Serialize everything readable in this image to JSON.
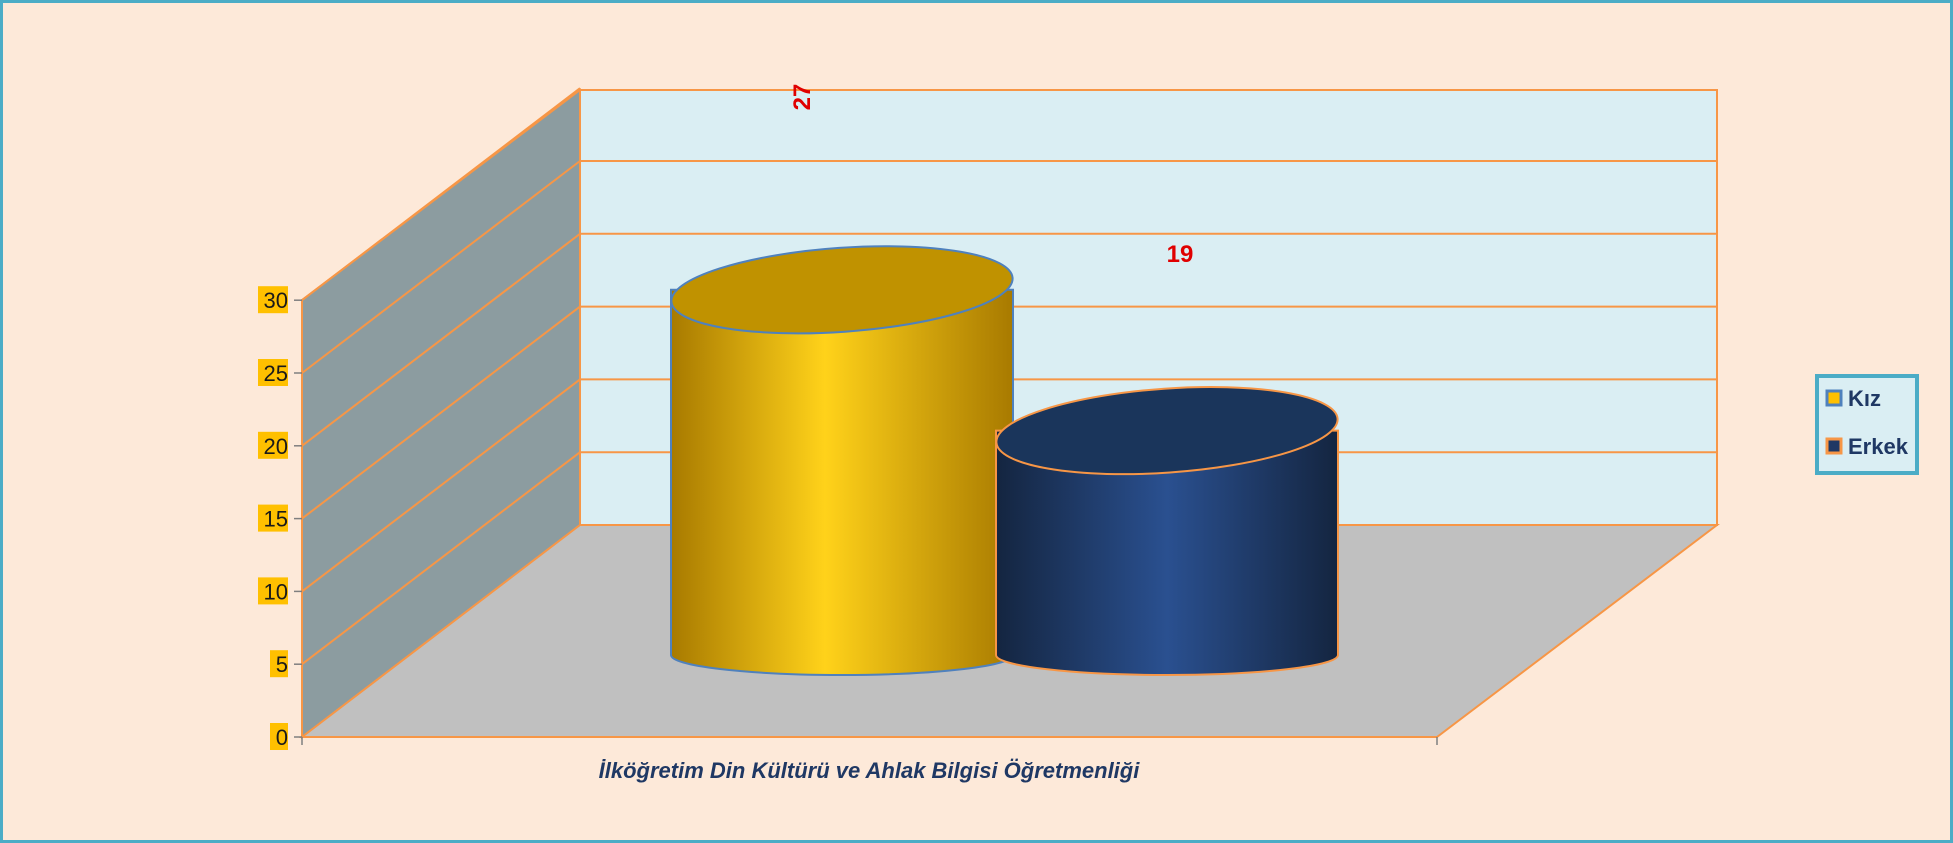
{
  "chart_data": {
    "type": "bar",
    "style": "3d-cylinder",
    "categories": [
      "İlköğretim Din Kültürü ve Ahlak Bilgisi Öğretmenliği"
    ],
    "series": [
      {
        "name": "Kız",
        "values": [
          27
        ],
        "color": "#ffc000",
        "label_color": "#ff0000"
      },
      {
        "name": "Erkek",
        "values": [
          19
        ],
        "color": "#1f3864",
        "label_color": "#ff0000"
      }
    ],
    "title": "",
    "xlabel": "",
    "ylabel": "",
    "ylim": [
      0,
      30
    ],
    "yticks": [
      "0",
      "5",
      "10",
      "15",
      "20",
      "25",
      "30"
    ],
    "grid": true,
    "legend": "right",
    "colors": {
      "background": "#fde9d9",
      "border": "#4bacc6",
      "back_wall": "#daeef3",
      "side_wall": "#8c9ca0",
      "floor": "#c0c0c0",
      "gridline": "#f79646",
      "tick_highlight": "#ffc000"
    }
  }
}
